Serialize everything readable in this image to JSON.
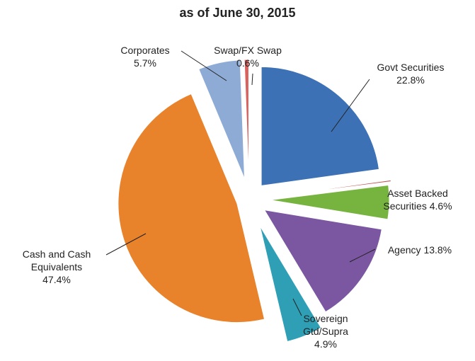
{
  "chart_data": {
    "type": "pie",
    "title": "as of June 30, 2015",
    "categories": [
      "Govt Securities",
      null,
      "Asset Backed Securities",
      "Agency",
      "Sovereign Gtd/Supra",
      "Cash and Cash Equivalents",
      "Corporates",
      "Swap/FX Swap"
    ],
    "values": [
      22.8,
      0.2,
      4.6,
      13.8,
      4.9,
      47.4,
      5.7,
      0.6
    ],
    "value_labels": [
      "22.8%",
      null,
      "4.6%",
      "13.8%",
      "4.9%",
      "47.4%",
      "5.7%",
      "0.6%"
    ],
    "colors": [
      "#3d71b6",
      "#c0504d",
      "#77b33f",
      "#7b57a2",
      "#2f9fb6",
      "#e8822b",
      "#8eabd6",
      "#d9625e"
    ]
  }
}
